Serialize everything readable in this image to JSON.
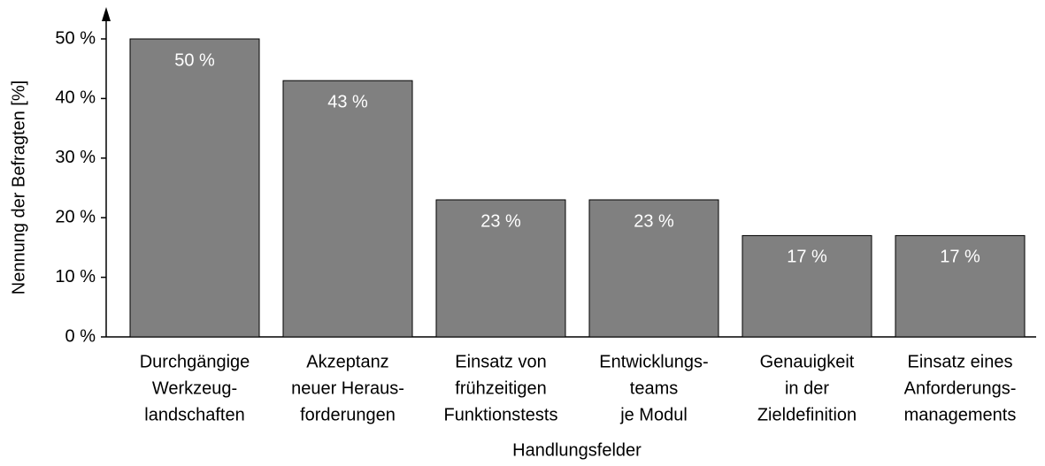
{
  "chart_data": {
    "type": "bar",
    "ylabel": "Nennung der Befragten [%]",
    "xlabel": "Handlungsfelder",
    "categories": [
      [
        "Durchgängige",
        "Werkzeug-",
        "landschaften"
      ],
      [
        "Akzeptanz",
        "neuer Heraus-",
        "forderungen"
      ],
      [
        "Einsatz von",
        "frühzeitigen",
        "Funktionstests"
      ],
      [
        "Entwicklungs-",
        "teams",
        "je Modul"
      ],
      [
        "Genauigkeit",
        "in der",
        "Zieldefinition"
      ],
      [
        "Einsatz eines",
        "Anforderungs-",
        "managements"
      ]
    ],
    "values": [
      50,
      43,
      23,
      23,
      17,
      17
    ],
    "value_labels": [
      "50 %",
      "43 %",
      "23 %",
      "23 %",
      "17 %",
      "17 %"
    ],
    "color": "#808080",
    "ylim": [
      0,
      50
    ],
    "yticks": [
      {
        "value": 0,
        "label": "0 %"
      },
      {
        "value": 10,
        "label": "10 %"
      },
      {
        "value": 20,
        "label": "20 %"
      },
      {
        "value": 30,
        "label": "30 %"
      },
      {
        "value": 40,
        "label": "40 %"
      },
      {
        "value": 50,
        "label": "50 %"
      }
    ],
    "grid": false
  }
}
